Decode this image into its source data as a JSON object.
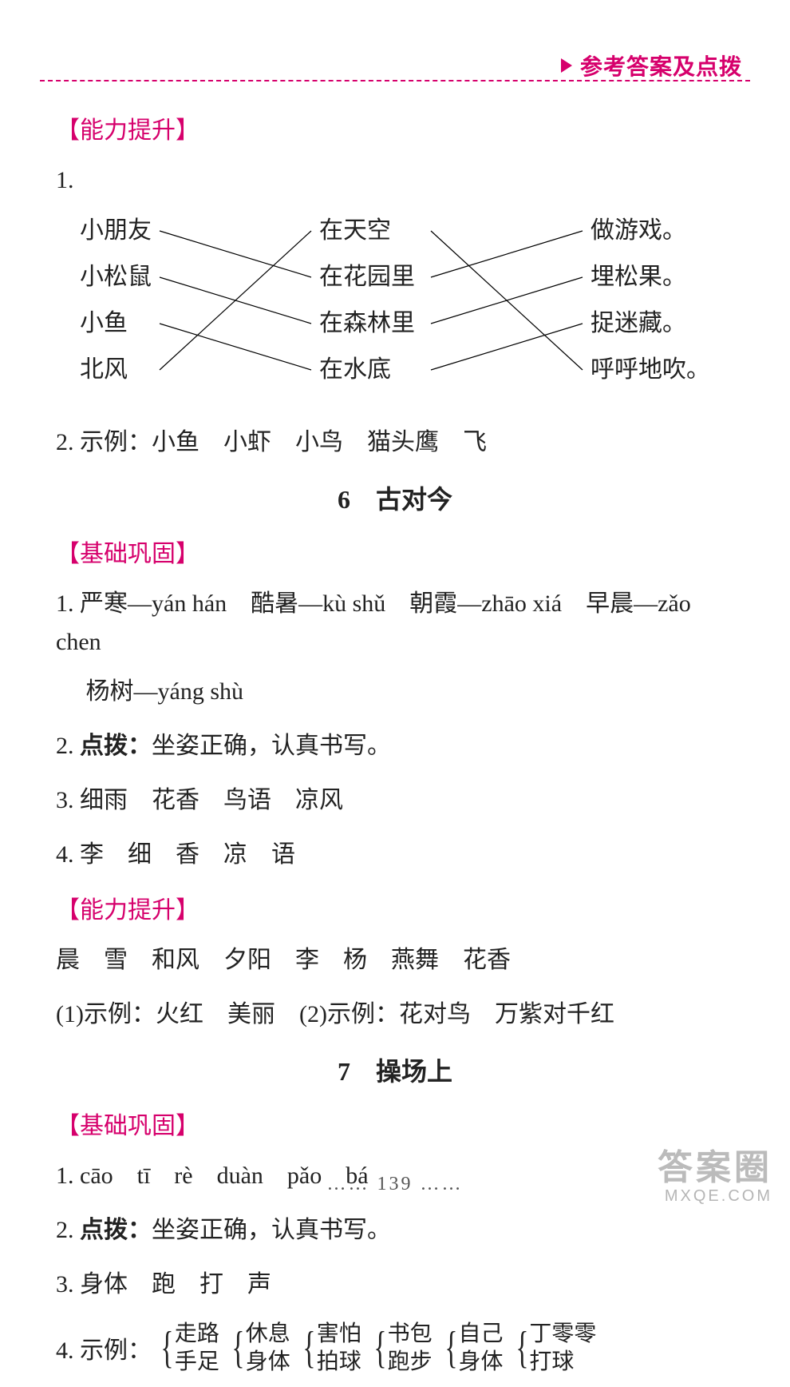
{
  "header": {
    "title": "参考答案及点拨"
  },
  "colors": {
    "accent": "#d6006c",
    "text": "#222222",
    "bg": "#ffffff"
  },
  "s1": {
    "label": "【能力提升】",
    "q1_num": "1.",
    "match": {
      "left": [
        "小朋友",
        "小松鼠",
        "小鱼",
        "北风"
      ],
      "mid": [
        "在天空",
        "在花园里",
        "在森林里",
        "在水底"
      ],
      "right": [
        "做游戏。",
        "埋松果。",
        "捉迷藏。",
        "呼呼地吹。"
      ],
      "edges_lm": [
        [
          0,
          1
        ],
        [
          1,
          2
        ],
        [
          2,
          3
        ],
        [
          3,
          0
        ]
      ],
      "edges_mr": [
        [
          0,
          3
        ],
        [
          1,
          0
        ],
        [
          2,
          1
        ],
        [
          3,
          2
        ]
      ],
      "stroke": "#000000",
      "stroke_width": 1.2
    },
    "q2": "2. 示例：小鱼　小虾　小鸟　猫头鹰　飞"
  },
  "title6": "6　古对今",
  "s2": {
    "label": "【基础巩固】",
    "l1": "1. 严寒—yán hán　酷暑—kù shǔ　朝霞—zhāo xiá　早晨—zǎo chen",
    "l1b": "　 杨树—yáng shù",
    "l2a": "2. ",
    "l2b": "点拨：",
    "l2c": "坐姿正确，认真书写。",
    "l3": "3. 细雨　花香　鸟语　凉风",
    "l4": "4. 李　细　香　凉　语"
  },
  "s3": {
    "label": "【能力提升】",
    "l1": "晨　雪　和风　夕阳　李　杨　燕舞　花香",
    "l2": "(1)示例：火红　美丽　(2)示例：花对鸟　万紫对千红"
  },
  "title7": "7　操场上",
  "s4": {
    "label": "【基础巩固】",
    "l1": "1. cāo　tī　rè　duàn　pǎo　bá",
    "l2a": "2. ",
    "l2b": "点拨：",
    "l2c": "坐姿正确，认真书写。",
    "l3": "3. 身体　跑　打　声",
    "q4_label": "4. 示例：",
    "braces": [
      {
        "top": "走路",
        "bot": "手足"
      },
      {
        "top": "休息",
        "bot": "身体"
      },
      {
        "top": "害怕",
        "bot": "拍球"
      },
      {
        "top": "书包",
        "bot": "跑步"
      },
      {
        "top": "自己",
        "bot": "身体"
      },
      {
        "top": "丁零零",
        "bot": "打球"
      }
    ]
  },
  "page_num": "…… 139 ……",
  "watermark": {
    "line1": "答案圈",
    "line2": "MXQE.COM"
  }
}
